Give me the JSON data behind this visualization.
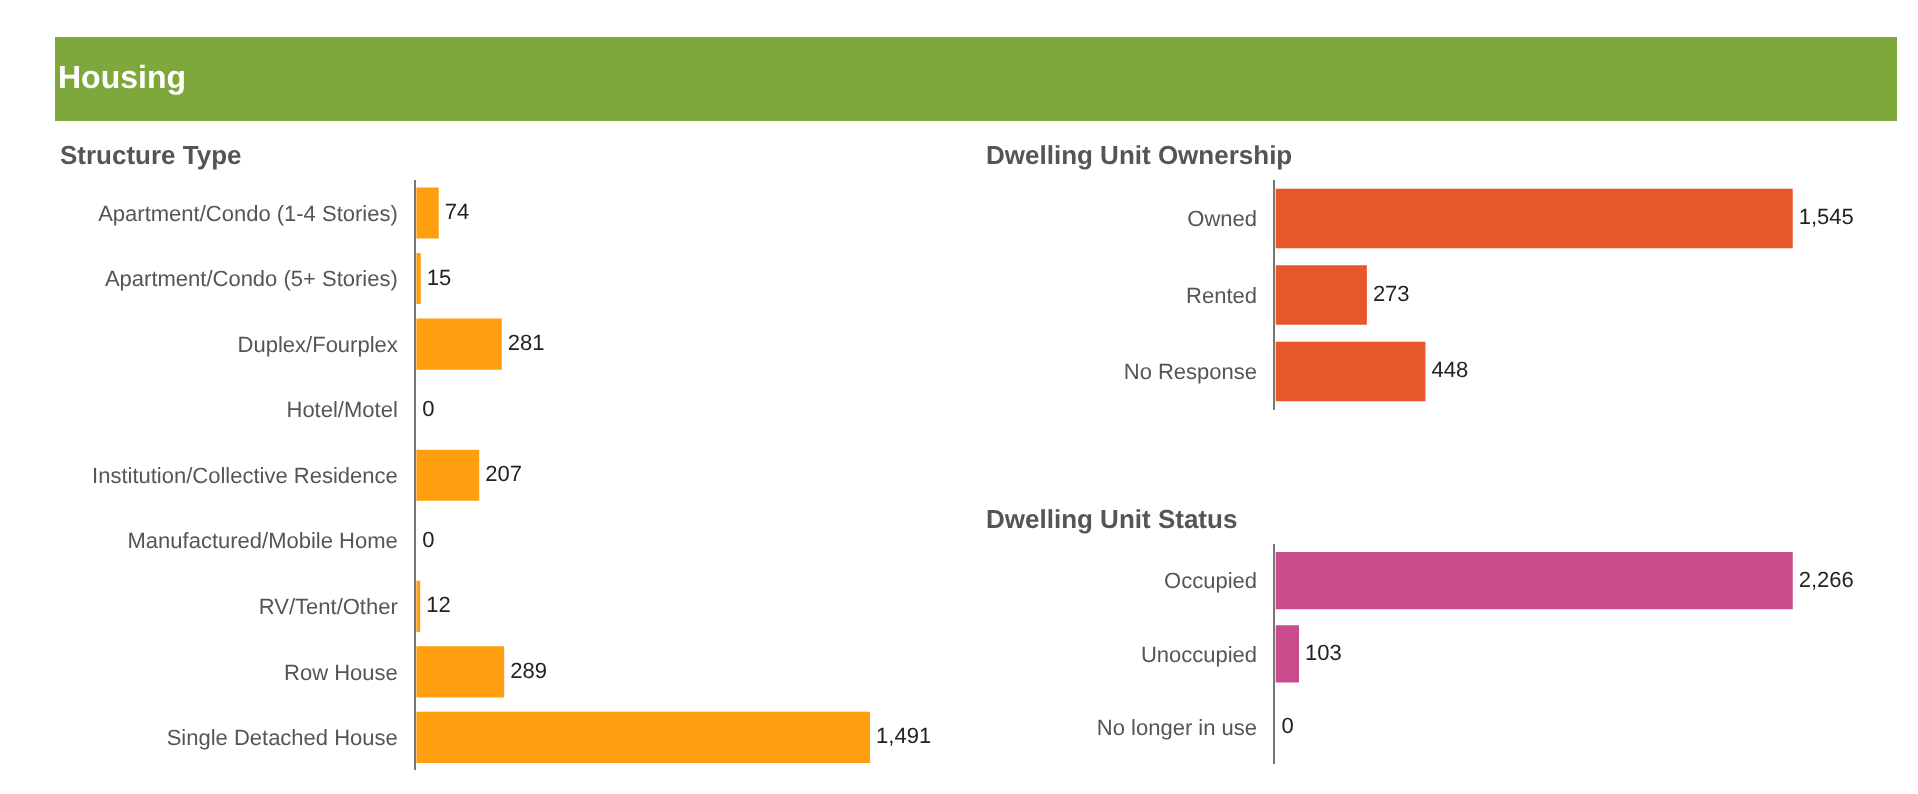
{
  "chart_data": [
    {
      "type": "other",
      "title": "Housing",
      "color": "#7fa83c"
    },
    {
      "type": "bar",
      "orientation": "horizontal",
      "title": "Structure Type",
      "color": "#ff9e0f",
      "value_labels": [
        "74",
        "15",
        "281",
        "0",
        "207",
        "0",
        "12",
        "289",
        "1,491"
      ],
      "categories": [
        "Apartment/Condo (1-4 Stories)",
        "Apartment/Condo (5+ Stories)",
        "Duplex/Fourplex",
        "Hotel/Motel",
        "Institution/Collective Residence",
        "Manufactured/Mobile Home",
        "RV/Tent/Other",
        "Row House",
        "Single Detached House"
      ],
      "values": [
        74,
        15,
        281,
        0,
        207,
        0,
        12,
        289,
        1491
      ]
    },
    {
      "type": "bar",
      "orientation": "horizontal",
      "title": "Dwelling Unit Ownership",
      "color": "#e8572a",
      "value_labels": [
        "1,545",
        "273",
        "448"
      ],
      "categories": [
        "Owned",
        "Rented",
        "No Response"
      ],
      "values": [
        1545,
        273,
        448
      ]
    },
    {
      "type": "bar",
      "orientation": "horizontal",
      "title": "Dwelling Unit Status",
      "color": "#c84b8c",
      "value_labels": [
        "2,266",
        "103",
        "0"
      ],
      "categories": [
        "Occupied",
        "Unoccupied",
        "No longer in use"
      ],
      "values": [
        2266,
        103,
        0
      ]
    }
  ]
}
